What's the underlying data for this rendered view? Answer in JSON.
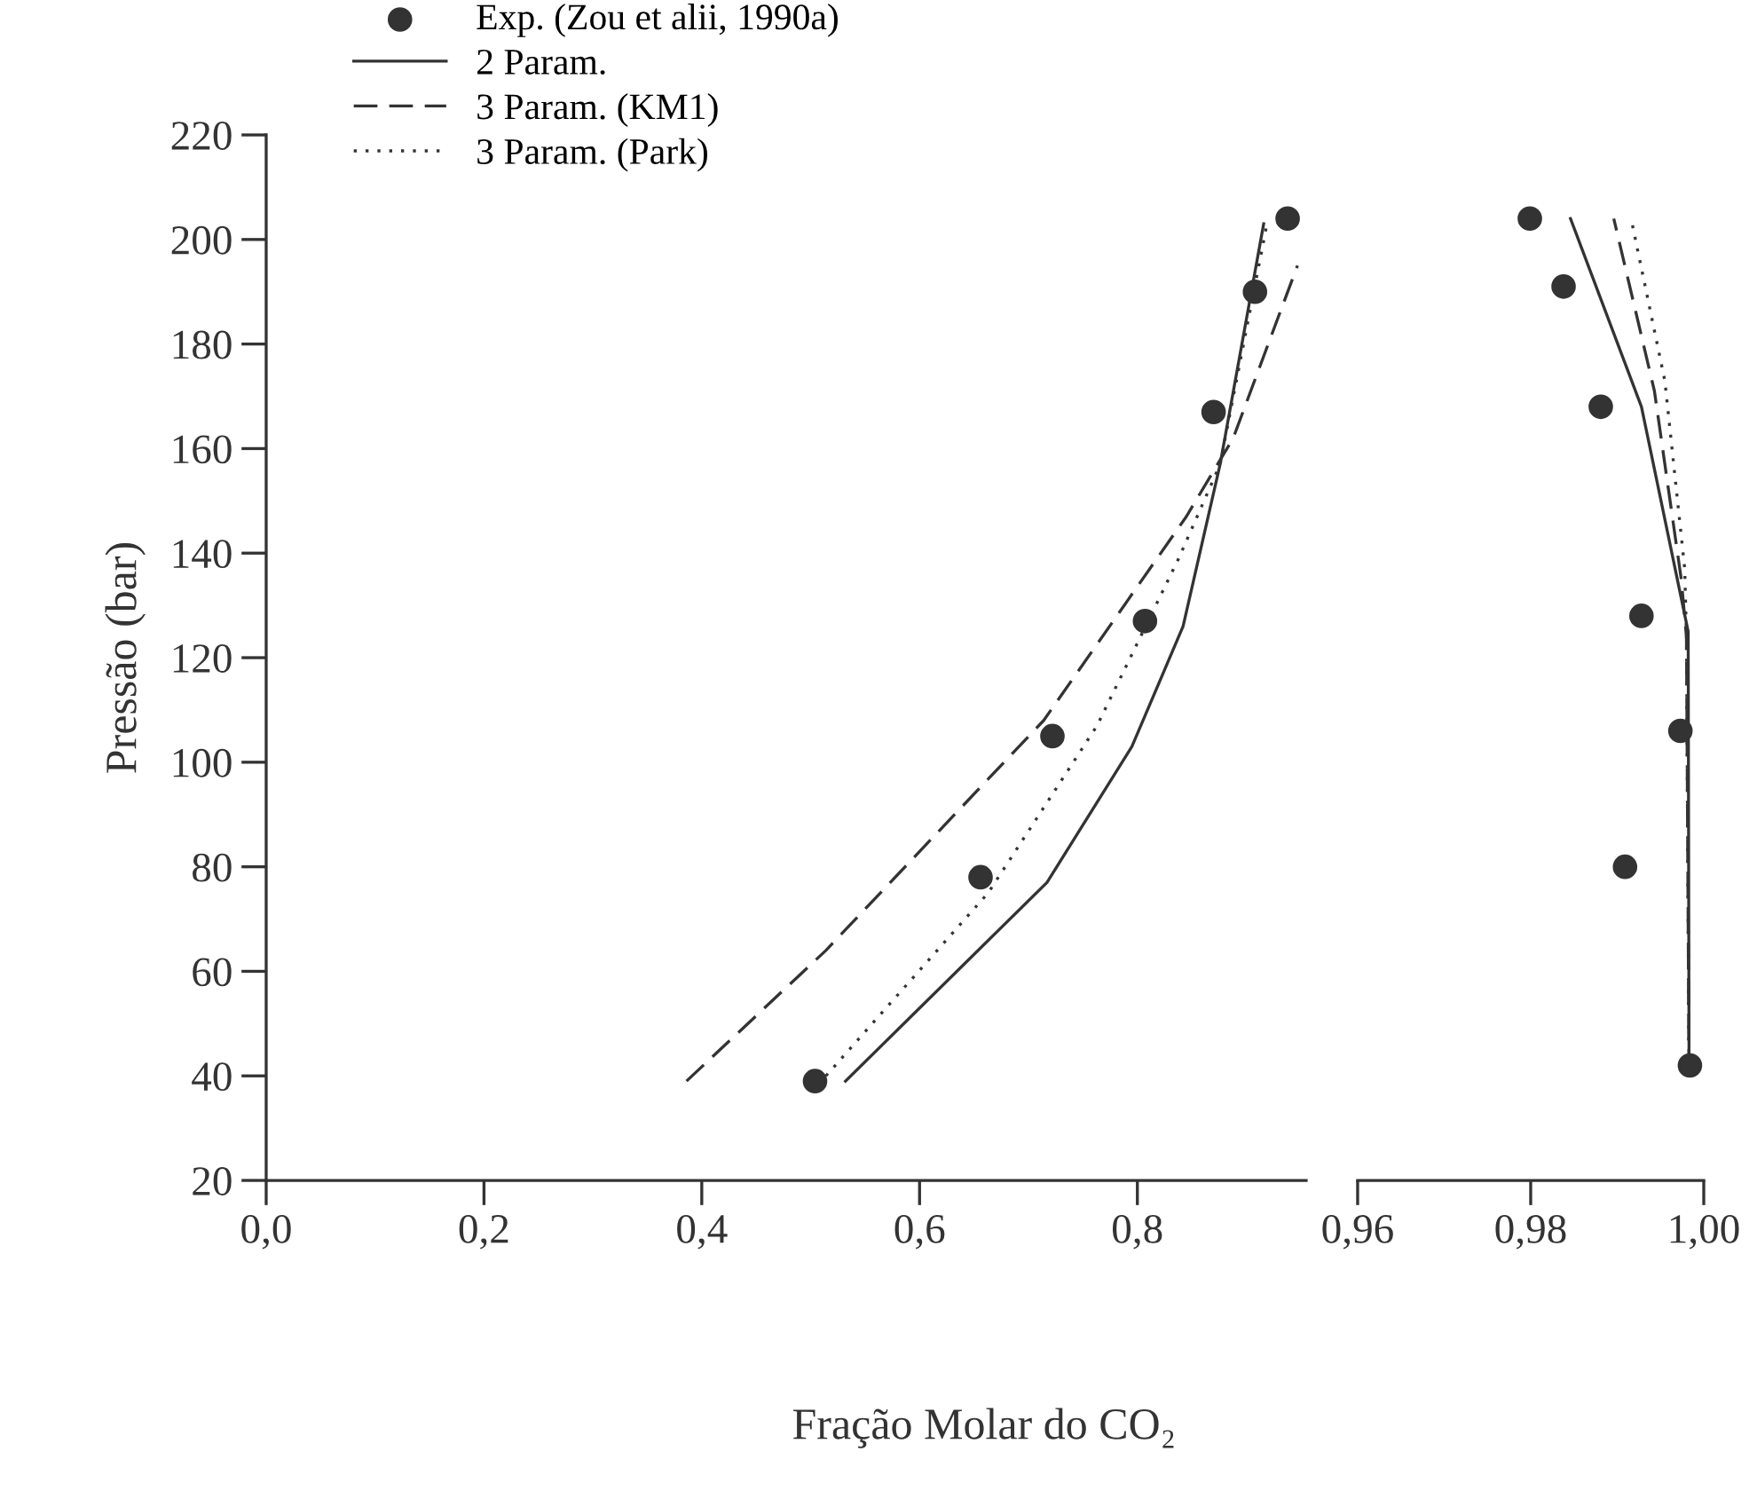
{
  "chart_data": [
    {
      "type": "line",
      "xlabel": "Fração Molar do CO₂",
      "ylabel": "Pressão (bar)",
      "xlim": [
        0,
        0.955
      ],
      "ylim": [
        20,
        220
      ],
      "xticks": [
        {
          "value": 0,
          "label": "0,0"
        },
        {
          "value": 0.2,
          "label": "0,2"
        },
        {
          "value": 0.4,
          "label": "0,4"
        },
        {
          "value": 0.6,
          "label": "0,6"
        },
        {
          "value": 0.8,
          "label": "0,8"
        }
      ],
      "yticks": [
        20,
        40,
        60,
        80,
        100,
        120,
        140,
        160,
        180,
        200,
        220
      ],
      "grid": false,
      "legend": "top left",
      "series": [
        {
          "name": "Exp. (Zou et alii, 1990a)",
          "type": "scatter",
          "marker": "circle",
          "color": "#333333",
          "x": [
            0.504,
            0.656,
            0.722,
            0.807,
            0.87,
            0.908,
            0.938
          ],
          "values": [
            39,
            78,
            105,
            127,
            167,
            190,
            204
          ]
        },
        {
          "name": "2 Param.",
          "line_style": "solid",
          "color": "#333333",
          "x": [
            0.532,
            0.717,
            0.795,
            0.842,
            0.876,
            0.916
          ],
          "values": [
            39,
            77,
            103,
            126,
            157,
            203
          ]
        },
        {
          "name": "3 Param. (KM1)",
          "line_style": "dashed",
          "color": "#333333",
          "x": [
            0.386,
            0.514,
            0.714,
            0.845,
            0.888,
            0.947
          ],
          "values": [
            39,
            64,
            108,
            147,
            162,
            195
          ]
        },
        {
          "name": "3 Param. (Park)",
          "line_style": "dotted",
          "color": "#333333",
          "x": [
            0.514,
            0.663,
            0.763,
            0.838,
            0.876,
            0.919
          ],
          "values": [
            40,
            75,
            107,
            139,
            157,
            203
          ]
        }
      ]
    },
    {
      "type": "line",
      "xlim": [
        0.96,
        1.0
      ],
      "ylim": [
        20,
        220
      ],
      "tick_labels": "x",
      "xticks": [
        {
          "value": 0.96,
          "label": "0,96"
        },
        {
          "value": 0.98,
          "label": "0,98"
        },
        {
          "value": 1.0,
          "label": "1,00"
        }
      ],
      "yticks": [
        20,
        40,
        60,
        80,
        100,
        120,
        140,
        160,
        180,
        200,
        220
      ],
      "grid": false,
      "series": [
        {
          "type": "scatter",
          "marker": "circle",
          "color": "#333333",
          "x": [
            0.9984,
            0.9909,
            0.9973,
            0.9928,
            0.9881,
            0.9838,
            0.9799
          ],
          "values": [
            42,
            80,
            106,
            128,
            168,
            191,
            204
          ]
        },
        {
          "line_style": "solid",
          "color": "#333333",
          "x": [
            0.9983,
            0.9982,
            0.9928,
            0.9846
          ],
          "values": [
            40,
            125,
            168,
            204
          ]
        },
        {
          "line_style": "dashed",
          "color": "#333333",
          "x": [
            0.9983,
            0.998,
            0.9974,
            0.9943,
            0.9896
          ],
          "values": [
            40,
            124,
            135,
            171,
            204
          ]
        },
        {
          "line_style": "dotted",
          "color": "#333333",
          "x": [
            0.9983,
            0.998,
            0.9978,
            0.9955,
            0.9916
          ],
          "values": [
            40,
            124,
            137,
            173,
            204
          ]
        }
      ]
    }
  ]
}
